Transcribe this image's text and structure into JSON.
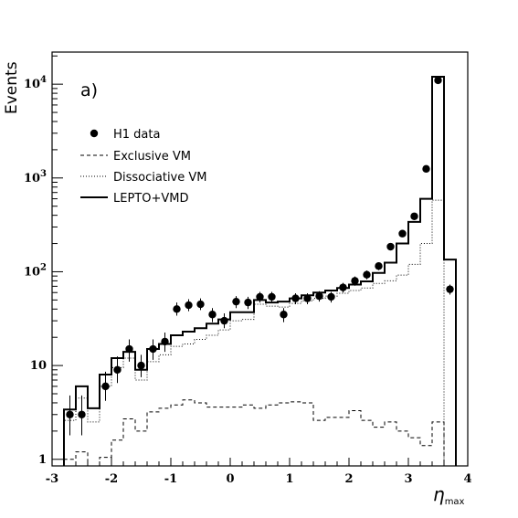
{
  "chart_data": {
    "type": "line",
    "panel_label": "a)",
    "xlabel": "η",
    "xlabel_sub": "max",
    "ylabel": "Events",
    "xlim": [
      -3,
      4
    ],
    "ylim": [
      0.85,
      22000
    ],
    "y_scale": "log",
    "x_ticks": [
      "-3",
      "-2",
      "-1",
      "0",
      "1",
      "2",
      "3",
      "4"
    ],
    "y_ticks": [
      {
        "value": 1,
        "base": "1",
        "exp": ""
      },
      {
        "value": 10,
        "base": "10",
        "exp": ""
      },
      {
        "value": 100,
        "base": "10",
        "exp": "2"
      },
      {
        "value": 1000,
        "base": "10",
        "exp": "3"
      },
      {
        "value": 10000,
        "base": "10",
        "exp": "4"
      }
    ],
    "legend": [
      {
        "label": "H1 data",
        "style": "marker"
      },
      {
        "label": "Exclusive VM",
        "style": "dashed"
      },
      {
        "label": "Dissociative VM",
        "style": "dotted"
      },
      {
        "label": "LEPTO+VMD",
        "style": "solid"
      }
    ],
    "bin_edges": [
      -2.8,
      -2.6,
      -2.4,
      -2.2,
      -2.0,
      -1.8,
      -1.6,
      -1.4,
      -1.2,
      -1.0,
      -0.8,
      -0.6,
      -0.4,
      -0.2,
      0.0,
      0.2,
      0.4,
      0.6,
      0.8,
      1.0,
      1.2,
      1.4,
      1.6,
      1.8,
      2.0,
      2.2,
      2.4,
      2.6,
      2.8,
      3.0,
      3.2,
      3.4,
      3.6,
      3.8
    ],
    "series": [
      {
        "name": "LEPTO+VMD",
        "values": [
          3.4,
          6.0,
          3.5,
          8.0,
          12,
          14,
          9,
          15,
          17,
          21,
          23,
          25,
          28,
          31,
          37,
          37,
          50,
          47,
          48,
          52,
          56,
          60,
          63,
          67,
          73,
          79,
          97,
          125,
          200,
          340,
          600,
          12000,
          135
        ]
      },
      {
        "name": "Dissociative VM",
        "values": [
          2.6,
          4.5,
          2.5,
          6.0,
          9.5,
          12,
          7,
          11,
          13,
          16,
          17,
          19,
          21,
          24,
          30,
          31,
          45,
          43,
          42,
          46,
          49,
          52,
          55,
          59,
          63,
          67,
          75,
          80,
          92,
          120,
          200,
          580,
          0.5
        ]
      },
      {
        "name": "Exclusive VM",
        "values": [
          1.0,
          1.2,
          0.85,
          1.05,
          1.6,
          2.7,
          2.0,
          3.2,
          3.5,
          3.8,
          4.3,
          4.0,
          3.6,
          3.6,
          3.6,
          3.8,
          3.5,
          3.8,
          4.0,
          4.1,
          4.0,
          2.6,
          2.8,
          2.8,
          3.3,
          2.6,
          2.2,
          2.5,
          2.0,
          1.7,
          1.4,
          2.5,
          0.5
        ]
      },
      {
        "name": "H1 data",
        "points": [
          {
            "x": -2.7,
            "y": 3.0,
            "lo": 1.8,
            "hi": 4.8
          },
          {
            "x": -2.5,
            "y": 3.0,
            "lo": 1.8,
            "hi": 4.8
          },
          {
            "x": -2.1,
            "y": 6.0,
            "lo": 4.2,
            "hi": 8.6
          },
          {
            "x": -1.9,
            "y": 9.0,
            "lo": 6.5,
            "hi": 12.5
          },
          {
            "x": -1.7,
            "y": 15,
            "lo": 11,
            "hi": 19
          },
          {
            "x": -1.5,
            "y": 10,
            "lo": 7.5,
            "hi": 13
          },
          {
            "x": -1.3,
            "y": 15,
            "lo": 11.5,
            "hi": 19
          },
          {
            "x": -1.1,
            "y": 18,
            "lo": 14,
            "hi": 22.5
          },
          {
            "x": -0.9,
            "y": 40,
            "lo": 34,
            "hi": 47
          },
          {
            "x": -0.7,
            "y": 44,
            "lo": 38,
            "hi": 51
          },
          {
            "x": -0.5,
            "y": 45,
            "lo": 39,
            "hi": 52
          },
          {
            "x": -0.3,
            "y": 35,
            "lo": 29,
            "hi": 41
          },
          {
            "x": -0.1,
            "y": 30,
            "lo": 25,
            "hi": 36
          },
          {
            "x": 0.1,
            "y": 48,
            "lo": 41,
            "hi": 55
          },
          {
            "x": 0.3,
            "y": 47,
            "lo": 40,
            "hi": 54
          },
          {
            "x": 0.5,
            "y": 54,
            "lo": 47,
            "hi": 61
          },
          {
            "x": 0.7,
            "y": 54,
            "lo": 47,
            "hi": 61
          },
          {
            "x": 0.9,
            "y": 35,
            "lo": 29,
            "hi": 41
          },
          {
            "x": 1.1,
            "y": 52,
            "lo": 45,
            "hi": 59
          },
          {
            "x": 1.3,
            "y": 52,
            "lo": 45,
            "hi": 59
          },
          {
            "x": 1.5,
            "y": 55,
            "lo": 48,
            "hi": 62
          },
          {
            "x": 1.7,
            "y": 54,
            "lo": 47,
            "hi": 61
          },
          {
            "x": 1.9,
            "y": 68,
            "lo": 60,
            "hi": 76
          },
          {
            "x": 2.1,
            "y": 80,
            "lo": 71,
            "hi": 89
          },
          {
            "x": 2.3,
            "y": 93,
            "lo": 83,
            "hi": 103
          },
          {
            "x": 2.5,
            "y": 115,
            "lo": 104,
            "hi": 126
          },
          {
            "x": 2.7,
            "y": 185,
            "lo": 171,
            "hi": 199
          },
          {
            "x": 2.9,
            "y": 255,
            "lo": 239,
            "hi": 271
          },
          {
            "x": 3.1,
            "y": 390,
            "lo": 370,
            "hi": 410
          },
          {
            "x": 3.3,
            "y": 1250,
            "lo": 1215,
            "hi": 1285
          },
          {
            "x": 3.5,
            "y": 11000,
            "lo": 10900,
            "hi": 11100
          },
          {
            "x": 3.7,
            "y": 65,
            "lo": 57,
            "hi": 73
          }
        ]
      }
    ]
  }
}
